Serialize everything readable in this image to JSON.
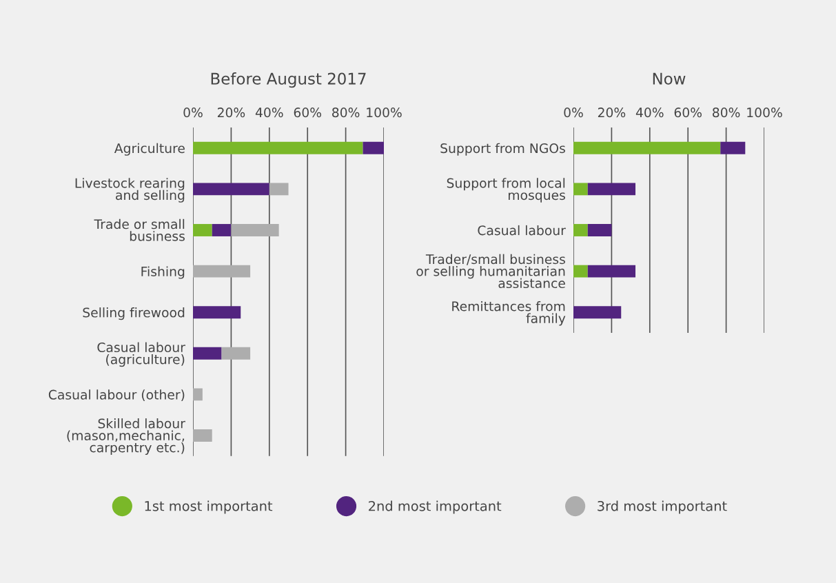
{
  "chart_data": [
    {
      "type": "bar",
      "orientation": "horizontal",
      "stacked": true,
      "title": "Before August 2017",
      "categories": [
        "Agriculture",
        "Livestock rearing\nand selling",
        "Trade or small\nbusiness",
        "Fishing",
        "Selling firewood",
        "Casual labour\n(agriculture)",
        "Casual labour (other)",
        "Skilled labour\n(mason,mechanic,\ncarpentry etc.)"
      ],
      "series": [
        {
          "name": "1st most important",
          "color": "#7ab829",
          "values": [
            89,
            0,
            10,
            0,
            0,
            0,
            0,
            0
          ]
        },
        {
          "name": "2nd most important",
          "color": "#52247f",
          "values": [
            11,
            40,
            10,
            0,
            25,
            15,
            0,
            0
          ]
        },
        {
          "name": "3rd most important",
          "color": "#adadad",
          "values": [
            0,
            10,
            25,
            30,
            0,
            15,
            5,
            10
          ]
        }
      ],
      "xlim": [
        0,
        100
      ],
      "xticks": [
        {
          "value": 0,
          "label": "0%"
        },
        {
          "value": 20,
          "label": "20%"
        },
        {
          "value": 40,
          "label": "40%"
        },
        {
          "value": 60,
          "label": "60%"
        },
        {
          "value": 80,
          "label": "80%"
        },
        {
          "value": 100,
          "label": "100%"
        }
      ],
      "grid": "x",
      "legend": "bottom"
    },
    {
      "type": "bar",
      "orientation": "horizontal",
      "stacked": true,
      "title": "Now",
      "categories": [
        "Support from NGOs",
        "Support from local\nmosques",
        "Casual labour",
        "Trader/small business\nor selling humanitarian\nassistance",
        "Remittances from\nfamily"
      ],
      "series": [
        {
          "color": "#7ab829",
          "values": [
            77,
            7.5,
            7.5,
            7.5,
            0
          ]
        },
        {
          "color": "#52247f",
          "values": [
            13,
            25,
            12.5,
            25,
            25
          ]
        }
      ],
      "xlim": [
        0,
        100
      ],
      "xticks": [
        {
          "value": 0,
          "label": "0%"
        },
        {
          "value": 20,
          "label": "20%"
        },
        {
          "value": 40,
          "label": "40%"
        },
        {
          "value": 60,
          "label": "60%"
        },
        {
          "value": 80,
          "label": "80%"
        },
        {
          "value": 100,
          "label": "100%"
        }
      ],
      "grid": "x"
    }
  ]
}
